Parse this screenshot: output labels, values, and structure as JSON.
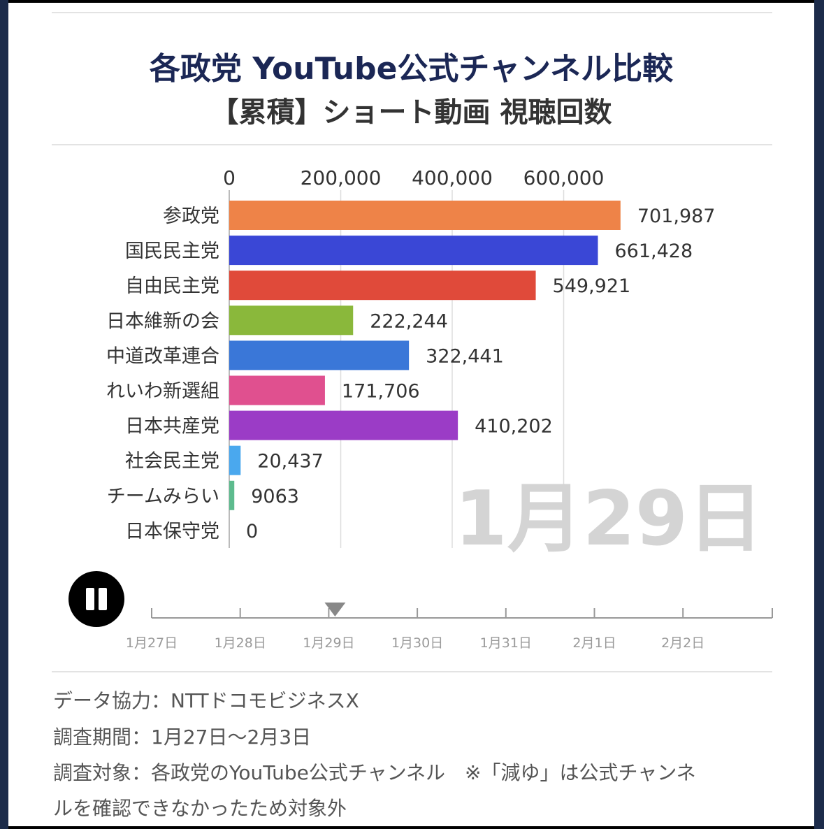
{
  "title": "各政党 YouTube公式チャンネル比較",
  "subtitle": "【累積】ショート動画 視聴回数",
  "date_label": "1月29日",
  "chart_data": {
    "type": "bar",
    "orientation": "horizontal",
    "categories": [
      "参政党",
      "国民民主党",
      "自由民主党",
      "日本維新の会",
      "中道改革連合",
      "れいわ新選組",
      "日本共産党",
      "社会民主党",
      "チームみらい",
      "日本保守党"
    ],
    "values": [
      701987,
      661428,
      549921,
      222244,
      322441,
      171706,
      410202,
      20437,
      9063,
      0
    ],
    "value_labels": [
      "701,987",
      "661,428",
      "549,921",
      "222,244",
      "322,441",
      "171,706",
      "410,202",
      "20,437",
      "9063",
      "0"
    ],
    "colors": [
      "#ee8348",
      "#3a47d6",
      "#e04a3a",
      "#8ab83b",
      "#3a77d8",
      "#e0508f",
      "#9b3cc6",
      "#4aa8ee",
      "#5dbb8e",
      "#cccccc"
    ],
    "x_ticks": [
      "0",
      "200,000",
      "400,000",
      "600,000"
    ],
    "x_tick_values": [
      0,
      200000,
      400000,
      600000
    ],
    "xlim": [
      0,
      800000
    ],
    "grid": true,
    "legend": "none"
  },
  "timeline": {
    "labels": [
      "1月27日",
      "1月28日",
      "1月29日",
      "1月30日",
      "1月31日",
      "2月1日",
      "2月2日"
    ],
    "current_index": 2
  },
  "footer": {
    "line1": "データ協力：NTTドコモビジネスX",
    "line2": "調査期間：1月27日〜2月3日",
    "line3": "調査対象：各政党のYouTube公式チャンネル　※「減ゆ」は公式チャンネ",
    "line4": "ルを確認できなかったため対象外"
  },
  "icons": {
    "pause": "pause-icon"
  }
}
